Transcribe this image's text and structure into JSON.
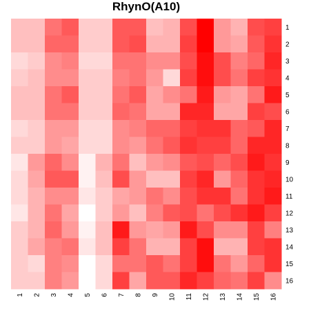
{
  "chart_data": {
    "type": "heatmap",
    "title": "RhynO(A10)",
    "xlabel": "",
    "ylabel": "",
    "x": [
      "1",
      "2",
      "3",
      "4",
      "5",
      "6",
      "7",
      "8",
      "9",
      "10",
      "11",
      "12",
      "13",
      "14",
      "15",
      "16"
    ],
    "y": [
      "1",
      "2",
      "3",
      "4",
      "5",
      "6",
      "7",
      "8",
      "9",
      "10",
      "11",
      "12",
      "13",
      "14",
      "15",
      "16"
    ],
    "color_scale": {
      "low": "#ffffff",
      "high": "#ff0000",
      "range": [
        0,
        1
      ]
    },
    "grid": false,
    "legend": "none",
    "values": [
      [
        0.25,
        0.25,
        0.55,
        0.65,
        0.2,
        0.2,
        0.65,
        0.65,
        0.25,
        0.3,
        0.7,
        1.0,
        0.4,
        0.3,
        0.7,
        0.75
      ],
      [
        0.25,
        0.25,
        0.6,
        0.6,
        0.2,
        0.2,
        0.65,
        0.7,
        0.3,
        0.3,
        0.75,
        1.0,
        0.4,
        0.35,
        0.65,
        0.8
      ],
      [
        0.15,
        0.2,
        0.45,
        0.5,
        0.15,
        0.15,
        0.55,
        0.55,
        0.45,
        0.45,
        0.7,
        0.95,
        0.7,
        0.5,
        0.6,
        0.85
      ],
      [
        0.2,
        0.25,
        0.45,
        0.45,
        0.2,
        0.2,
        0.5,
        0.55,
        0.4,
        0.15,
        0.75,
        0.95,
        0.7,
        0.55,
        0.75,
        0.8
      ],
      [
        0.25,
        0.25,
        0.55,
        0.65,
        0.2,
        0.2,
        0.55,
        0.65,
        0.35,
        0.45,
        0.55,
        0.9,
        0.4,
        0.35,
        0.55,
        0.9
      ],
      [
        0.25,
        0.25,
        0.55,
        0.55,
        0.2,
        0.2,
        0.6,
        0.55,
        0.35,
        0.35,
        0.85,
        0.85,
        0.35,
        0.35,
        0.75,
        0.7
      ],
      [
        0.15,
        0.2,
        0.4,
        0.4,
        0.15,
        0.15,
        0.45,
        0.5,
        0.6,
        0.6,
        0.75,
        0.8,
        0.8,
        0.6,
        0.65,
        0.85
      ],
      [
        0.2,
        0.2,
        0.4,
        0.35,
        0.15,
        0.15,
        0.45,
        0.4,
        0.55,
        0.65,
        0.8,
        0.75,
        0.75,
        0.6,
        0.85,
        0.85
      ],
      [
        0.1,
        0.4,
        0.6,
        0.45,
        0.05,
        0.3,
        0.55,
        0.25,
        0.4,
        0.45,
        0.65,
        0.7,
        0.6,
        0.7,
        0.9,
        0.8
      ],
      [
        0.15,
        0.35,
        0.65,
        0.65,
        0.05,
        0.25,
        0.7,
        0.4,
        0.25,
        0.25,
        0.75,
        0.85,
        0.4,
        0.6,
        0.8,
        0.85
      ],
      [
        0.15,
        0.3,
        0.45,
        0.45,
        0.1,
        0.2,
        0.35,
        0.4,
        0.55,
        0.45,
        0.7,
        0.8,
        0.8,
        0.55,
        0.8,
        0.9
      ],
      [
        0.1,
        0.3,
        0.55,
        0.35,
        0.0,
        0.2,
        0.4,
        0.25,
        0.5,
        0.65,
        0.7,
        0.55,
        0.7,
        0.8,
        0.9,
        0.75
      ],
      [
        0.2,
        0.3,
        0.6,
        0.4,
        0.05,
        0.25,
        0.9,
        0.4,
        0.35,
        0.4,
        0.9,
        0.7,
        0.45,
        0.45,
        0.75,
        0.5
      ],
      [
        0.2,
        0.35,
        0.5,
        0.55,
        0.1,
        0.25,
        0.75,
        0.55,
        0.3,
        0.3,
        0.75,
        0.95,
        0.3,
        0.3,
        0.75,
        0.8
      ],
      [
        0.2,
        0.15,
        0.5,
        0.45,
        0.0,
        0.15,
        0.55,
        0.55,
        0.65,
        0.55,
        0.75,
        0.95,
        0.55,
        0.4,
        0.6,
        0.8
      ],
      [
        0.2,
        0.2,
        0.5,
        0.4,
        0.0,
        0.15,
        0.75,
        0.35,
        0.65,
        0.65,
        0.85,
        0.75,
        0.6,
        0.55,
        0.75,
        0.45
      ]
    ]
  }
}
